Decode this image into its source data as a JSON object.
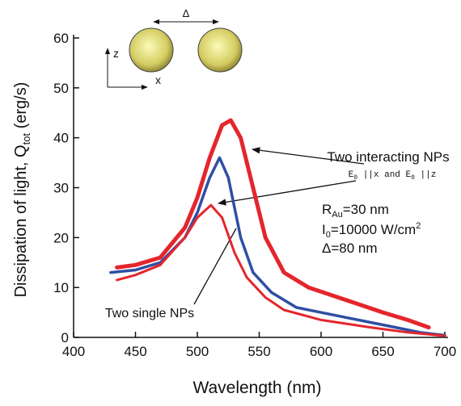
{
  "chart_data": {
    "type": "line",
    "xlabel": "Wavelength (nm)",
    "ylabel": [
      "Dissipation of light, Q",
      "tot",
      " (erg/s)"
    ],
    "xlim": [
      400,
      700
    ],
    "xticks": [
      400,
      450,
      500,
      550,
      600,
      650,
      700
    ],
    "ylim": [
      0,
      60
    ],
    "yticks": [
      0,
      10,
      20,
      30,
      40,
      50,
      60
    ],
    "series": [
      {
        "color": "#e4262c",
        "width": 5,
        "x": [
          435,
          450,
          470,
          490,
          500,
          510,
          520,
          527,
          535,
          545,
          555,
          570,
          590,
          620,
          650,
          670,
          687
        ],
        "values": [
          14,
          14.5,
          16,
          22,
          28,
          36,
          42.5,
          43.5,
          40,
          30,
          20,
          13,
          10,
          7.5,
          5,
          3.5,
          2
        ]
      },
      {
        "color": "#2e4fa3",
        "width": 3.5,
        "x": [
          430,
          450,
          470,
          490,
          500,
          510,
          518,
          525,
          535,
          545,
          560,
          580,
          620,
          650,
          680,
          700
        ],
        "values": [
          13,
          13.5,
          15,
          20,
          25,
          32,
          36,
          32,
          20,
          13,
          9,
          6,
          4,
          2.5,
          1,
          0.4
        ]
      },
      {
        "color": "#e4262c",
        "width": 3,
        "x": [
          435,
          450,
          470,
          490,
          500,
          511,
          520,
          530,
          540,
          555,
          570,
          600,
          640,
          670,
          700
        ],
        "values": [
          11.5,
          12.5,
          14.5,
          20,
          24,
          26.5,
          24,
          17,
          12,
          8,
          5.5,
          3.5,
          2,
          1,
          0.3
        ]
      }
    ],
    "annotations": {
      "interacting": "Two interacting NPs",
      "polarization": [
        "E",
        "0",
        " ||x and E",
        "0",
        " ||z"
      ],
      "single": "Two single NPs",
      "radius": [
        "R",
        "Au",
        "=30 nm"
      ],
      "intensity": [
        "I",
        "0",
        "=10000 W/cm",
        "2"
      ],
      "gap": "Δ=80 nm",
      "inset_gap": "Δ",
      "inset_z": "z",
      "inset_x": "x"
    }
  }
}
